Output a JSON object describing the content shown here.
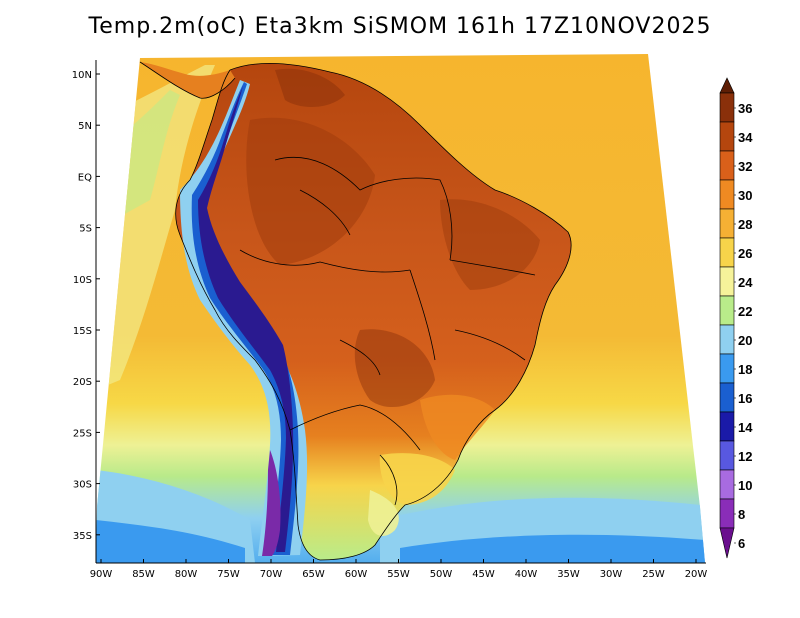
{
  "title": "Temp.2m(oC) Eta3km SiSMOM 161h 17Z10NOV2025",
  "variable": "Temp.2m",
  "units": "oC",
  "model": "Eta3km",
  "forecast_hour": "161h",
  "valid_time": "17Z10NOV2025",
  "lat_labels": [
    "10N",
    "5N",
    "EQ",
    "5S",
    "10S",
    "15S",
    "20S",
    "25S",
    "30S",
    "35S"
  ],
  "lon_labels": [
    "90W",
    "85W",
    "80W",
    "75W",
    "70W",
    "65W",
    "60W",
    "55W",
    "50W",
    "45W",
    "40W",
    "35W",
    "30W",
    "25W",
    "20W"
  ],
  "colorbar": {
    "labels": [
      "6",
      "8",
      "10",
      "12",
      "14",
      "16",
      "18",
      "20",
      "22",
      "24",
      "26",
      "28",
      "30",
      "32",
      "34",
      "36"
    ],
    "colors": [
      "#6a0f8e",
      "#8a2db8",
      "#a86be0",
      "#5858e0",
      "#1a1aa8",
      "#1a5fd0",
      "#3a9aef",
      "#8fd0f0",
      "#b9ec8a",
      "#f6f39a",
      "#f7d44a",
      "#f5b034",
      "#ef8a22",
      "#d9601a",
      "#b5460e",
      "#8a300a",
      "#5e1e05"
    ]
  }
}
